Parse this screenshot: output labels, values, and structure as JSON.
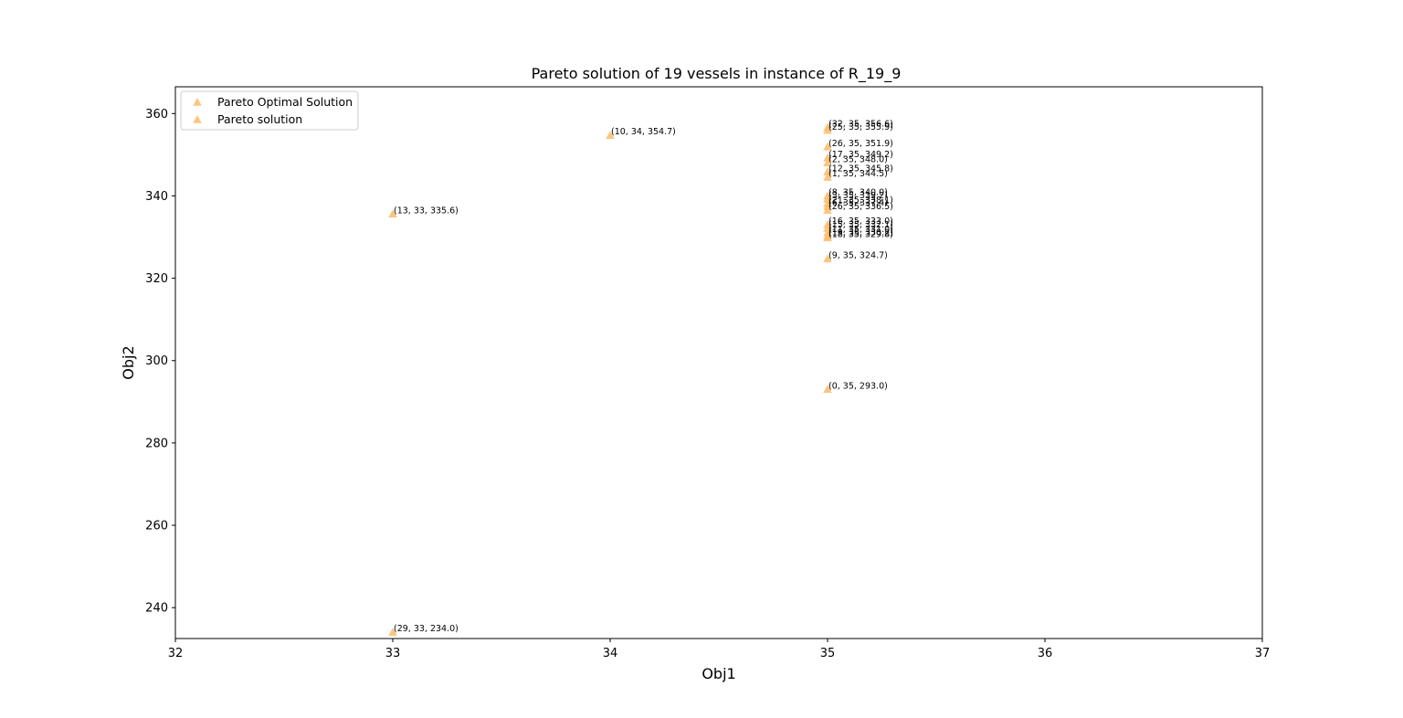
{
  "chart_data": {
    "type": "scatter",
    "title": "Pareto solution of 19 vessels in instance of R_19_9",
    "xlabel": "Obj1",
    "ylabel": "Obj2",
    "xlim": [
      32,
      37
    ],
    "ylim": [
      232.5,
      366.5
    ],
    "xticks": [
      32,
      33,
      34,
      35,
      36,
      37
    ],
    "yticks": [
      240,
      260,
      280,
      300,
      320,
      340,
      360
    ],
    "grid": false,
    "legend_position": "upper left",
    "marker": "triangle",
    "color": "#fdbf6f",
    "legend": [
      "Pareto Optimal Solution",
      "Pareto solution"
    ],
    "series": [
      {
        "name": "Pareto Optimal Solution",
        "points": [
          {
            "x": 35,
            "y": 356.6,
            "label": "(32, 35, 356.6)"
          },
          {
            "x": 35,
            "y": 355.9,
            "label": "(25, 35, 355.9)"
          },
          {
            "x": 34,
            "y": 354.7,
            "label": "(10, 34, 354.7)"
          },
          {
            "x": 35,
            "y": 351.9,
            "label": "(26, 35, 351.9)"
          },
          {
            "x": 35,
            "y": 349.2,
            "label": "(17, 35, 349.2)"
          },
          {
            "x": 35,
            "y": 348.0,
            "label": "(2, 35, 348.0)"
          },
          {
            "x": 35,
            "y": 345.8,
            "label": "(12, 35, 345.8)"
          },
          {
            "x": 35,
            "y": 344.5,
            "label": "(1, 35, 344.5)"
          },
          {
            "x": 35,
            "y": 340.0,
            "label": "(8, 35, 340.0)"
          },
          {
            "x": 35,
            "y": 339.2,
            "label": "(3, 35, 339.2)"
          },
          {
            "x": 35,
            "y": 338.1,
            "label": "(21, 35, 338.1)"
          },
          {
            "x": 35,
            "y": 337.4,
            "label": "(6, 35, 337.4)"
          },
          {
            "x": 35,
            "y": 336.5,
            "label": "(26, 35, 336.5)"
          },
          {
            "x": 33,
            "y": 335.6,
            "label": "(13, 33, 335.6)"
          },
          {
            "x": 35,
            "y": 333.0,
            "label": "(16, 35, 333.0)"
          },
          {
            "x": 35,
            "y": 332.1,
            "label": "(15, 35, 332.1)"
          },
          {
            "x": 35,
            "y": 331.0,
            "label": "(11, 35, 331.0)"
          },
          {
            "x": 35,
            "y": 330.2,
            "label": "(19, 35, 330.2)"
          },
          {
            "x": 35,
            "y": 329.8,
            "label": "(18, 35, 329.8)"
          },
          {
            "x": 35,
            "y": 324.7,
            "label": "(9, 35, 324.7)"
          },
          {
            "x": 35,
            "y": 293.0,
            "label": "(0, 35, 293.0)"
          },
          {
            "x": 33,
            "y": 234.0,
            "label": "(29, 33, 234.0)"
          }
        ]
      },
      {
        "name": "Pareto solution",
        "points": []
      }
    ]
  }
}
